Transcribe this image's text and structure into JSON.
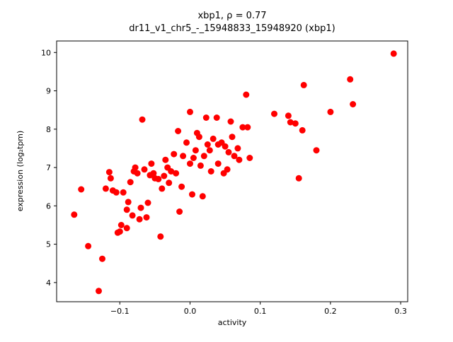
{
  "chart_data": {
    "type": "scatter",
    "title_line1": "xbp1, ρ = 0.77",
    "title_line2": "dr11_v1_chr5_-_15948833_15948920 (xbp1)",
    "xlabel": "activity",
    "ylabel": "expression (log₂tpm)",
    "xlim": [
      -0.19,
      0.31
    ],
    "ylim": [
      3.5,
      10.3
    ],
    "grid": false,
    "legend": "none",
    "marker_color": "#ff0000",
    "x_ticks": {
      "values": [
        -0.1,
        0.0,
        0.1,
        0.2,
        0.3
      ],
      "labels": [
        "−0.1",
        "0.0",
        "0.1",
        "0.2",
        "0.3"
      ]
    },
    "y_ticks": {
      "values": [
        4,
        5,
        6,
        7,
        8,
        9,
        10
      ],
      "labels": [
        "4",
        "5",
        "6",
        "7",
        "8",
        "9",
        "10"
      ]
    },
    "points": [
      [
        -0.165,
        5.77
      ],
      [
        -0.155,
        6.43
      ],
      [
        -0.145,
        4.95
      ],
      [
        -0.13,
        3.78
      ],
      [
        -0.125,
        4.62
      ],
      [
        -0.12,
        6.45
      ],
      [
        -0.115,
        6.88
      ],
      [
        -0.113,
        6.72
      ],
      [
        -0.11,
        6.4
      ],
      [
        -0.105,
        6.35
      ],
      [
        -0.103,
        5.3
      ],
      [
        -0.1,
        5.33
      ],
      [
        -0.098,
        5.5
      ],
      [
        -0.095,
        6.35
      ],
      [
        -0.09,
        5.42
      ],
      [
        -0.09,
        5.9
      ],
      [
        -0.088,
        6.1
      ],
      [
        -0.085,
        6.62
      ],
      [
        -0.082,
        5.75
      ],
      [
        -0.08,
        6.9
      ],
      [
        -0.078,
        7.0
      ],
      [
        -0.075,
        6.85
      ],
      [
        -0.072,
        5.65
      ],
      [
        -0.07,
        5.95
      ],
      [
        -0.068,
        8.25
      ],
      [
        -0.065,
        6.95
      ],
      [
        -0.062,
        5.7
      ],
      [
        -0.06,
        6.08
      ],
      [
        -0.057,
        6.8
      ],
      [
        -0.055,
        7.1
      ],
      [
        -0.052,
        6.85
      ],
      [
        -0.05,
        6.72
      ],
      [
        -0.045,
        6.7
      ],
      [
        -0.042,
        5.2
      ],
      [
        -0.04,
        6.45
      ],
      [
        -0.037,
        6.78
      ],
      [
        -0.035,
        7.2
      ],
      [
        -0.032,
        7.0
      ],
      [
        -0.03,
        6.6
      ],
      [
        -0.027,
        6.9
      ],
      [
        -0.023,
        7.35
      ],
      [
        -0.02,
        6.85
      ],
      [
        -0.017,
        7.95
      ],
      [
        -0.015,
        5.85
      ],
      [
        -0.012,
        6.5
      ],
      [
        -0.01,
        7.3
      ],
      [
        -0.005,
        7.65
      ],
      [
        0.0,
        8.45
      ],
      [
        0.0,
        7.1
      ],
      [
        0.003,
        6.3
      ],
      [
        0.005,
        7.25
      ],
      [
        0.008,
        7.45
      ],
      [
        0.01,
        7.9
      ],
      [
        0.013,
        7.8
      ],
      [
        0.015,
        7.05
      ],
      [
        0.018,
        6.25
      ],
      [
        0.02,
        7.3
      ],
      [
        0.023,
        8.3
      ],
      [
        0.025,
        7.6
      ],
      [
        0.028,
        7.45
      ],
      [
        0.03,
        6.9
      ],
      [
        0.033,
        7.75
      ],
      [
        0.038,
        8.3
      ],
      [
        0.04,
        7.6
      ],
      [
        0.04,
        7.1
      ],
      [
        0.045,
        7.65
      ],
      [
        0.048,
        6.85
      ],
      [
        0.05,
        7.55
      ],
      [
        0.053,
        6.95
      ],
      [
        0.055,
        7.4
      ],
      [
        0.058,
        8.2
      ],
      [
        0.06,
        7.8
      ],
      [
        0.063,
        7.3
      ],
      [
        0.068,
        7.5
      ],
      [
        0.07,
        7.2
      ],
      [
        0.075,
        8.05
      ],
      [
        0.08,
        8.9
      ],
      [
        0.082,
        8.05
      ],
      [
        0.085,
        7.25
      ],
      [
        0.12,
        8.4
      ],
      [
        0.14,
        8.35
      ],
      [
        0.143,
        8.18
      ],
      [
        0.15,
        8.15
      ],
      [
        0.155,
        6.72
      ],
      [
        0.16,
        7.97
      ],
      [
        0.162,
        9.15
      ],
      [
        0.18,
        7.45
      ],
      [
        0.2,
        8.45
      ],
      [
        0.228,
        9.3
      ],
      [
        0.232,
        8.65
      ],
      [
        0.29,
        9.97
      ]
    ]
  }
}
